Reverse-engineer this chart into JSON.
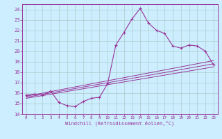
{
  "xlabel": "Windchill (Refroidissement éolien,°C)",
  "xlim": [
    -0.5,
    23.5
  ],
  "ylim": [
    14,
    24.5
  ],
  "yticks": [
    14,
    15,
    16,
    17,
    18,
    19,
    20,
    21,
    22,
    23,
    24
  ],
  "xticks": [
    0,
    1,
    2,
    3,
    4,
    5,
    6,
    7,
    8,
    9,
    10,
    11,
    12,
    13,
    14,
    15,
    16,
    17,
    18,
    19,
    20,
    21,
    22,
    23
  ],
  "background_color": "#cceeff",
  "grid_color": "#aacccc",
  "line_color": "#993399",
  "line1_x": [
    0,
    1,
    2,
    3,
    4,
    5,
    6,
    7,
    8,
    9,
    10,
    11,
    12,
    13,
    14,
    15,
    16,
    17,
    18,
    19,
    20,
    21,
    22,
    23
  ],
  "line1_y": [
    15.8,
    15.9,
    15.8,
    16.2,
    15.1,
    14.8,
    14.7,
    15.2,
    15.5,
    15.6,
    16.9,
    20.6,
    21.8,
    23.1,
    24.1,
    22.7,
    22.0,
    21.7,
    20.5,
    20.3,
    20.6,
    20.5,
    20.0,
    18.7
  ],
  "line2_x": [
    0,
    23
  ],
  "line2_y": [
    15.5,
    18.5
  ],
  "line3_x": [
    0,
    23
  ],
  "line3_y": [
    15.6,
    18.8
  ],
  "line4_x": [
    0,
    23
  ],
  "line4_y": [
    15.7,
    19.1
  ]
}
